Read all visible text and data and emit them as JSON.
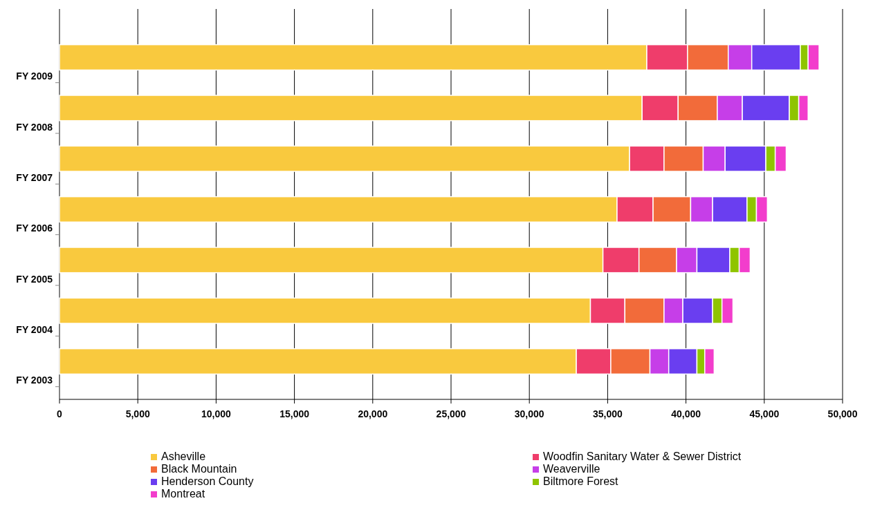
{
  "chart_data": {
    "type": "bar",
    "orientation": "horizontal",
    "stacked": true,
    "categories": [
      "FY 2009",
      "FY 2008",
      "FY 2007",
      "FY 2006",
      "FY 2005",
      "FY 2004",
      "FY 2003"
    ],
    "series": [
      {
        "name": "Asheville",
        "color": "#f9c93e",
        "values": [
          37500,
          37200,
          36400,
          35600,
          34700,
          33900,
          33000
        ]
      },
      {
        "name": "Woodfin Sanitary Water & Sewer District",
        "color": "#ef3d6b",
        "values": [
          2600,
          2300,
          2200,
          2300,
          2300,
          2200,
          2200
        ]
      },
      {
        "name": "Black Mountain",
        "color": "#f26b3a",
        "values": [
          2600,
          2500,
          2500,
          2400,
          2400,
          2500,
          2500
        ]
      },
      {
        "name": "Weaverville",
        "color": "#c63ee8",
        "values": [
          1500,
          1600,
          1400,
          1400,
          1300,
          1200,
          1200
        ]
      },
      {
        "name": "Henderson County",
        "color": "#6a3ef0",
        "values": [
          3100,
          3000,
          2600,
          2200,
          2100,
          1900,
          1800
        ]
      },
      {
        "name": "Biltmore Forest",
        "color": "#8fc400",
        "values": [
          500,
          600,
          600,
          600,
          600,
          600,
          500
        ]
      },
      {
        "name": "Montreat",
        "color": "#f23dcc",
        "values": [
          700,
          600,
          700,
          700,
          700,
          700,
          600
        ]
      }
    ],
    "xlim": [
      0,
      50000
    ],
    "xticks": [
      0,
      {
        "value": 5000,
        "label": "5,000"
      },
      {
        "value": 10000,
        "label": "10,000"
      },
      {
        "value": 15000,
        "label": "15,000"
      },
      {
        "value": 20000,
        "label": "20,000"
      },
      {
        "value": 25000,
        "label": "25,000"
      },
      {
        "value": 30000,
        "label": "30,000"
      },
      {
        "value": 35000,
        "label": "35,000"
      },
      {
        "value": 40000,
        "label": "40,000"
      },
      {
        "value": 45000,
        "label": "45,000"
      },
      {
        "value": 50000,
        "label": "50,000"
      }
    ],
    "grid": "x",
    "legend": "bottom"
  }
}
